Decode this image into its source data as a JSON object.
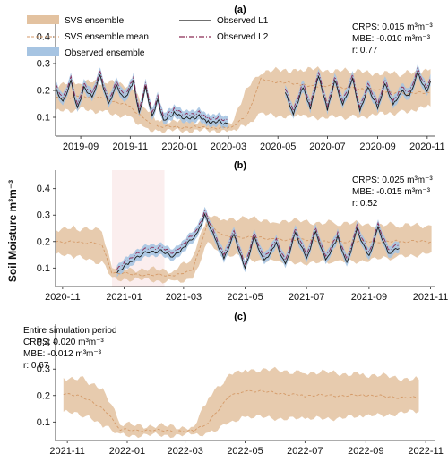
{
  "figure": {
    "ylabel": "Soil Moisture m³m⁻³"
  },
  "colors": {
    "svs_ensemble": "#e3c2a0",
    "svs_mean": "#d49a68",
    "obs_ensemble": "#a6c4e2",
    "l1": "#1a1a1a",
    "l2": "#8a2a55",
    "shade": "#fbeeee"
  },
  "legend": {
    "svs_ensemble": "SVS ensemble",
    "svs_mean": "SVS ensemble mean",
    "obs_ensemble": "Observed ensemble",
    "l1": "Observed L1",
    "l2": "Observed L2"
  },
  "chart_data": [
    {
      "panel": "(a)",
      "type": "area",
      "x_range": [
        "2019-08-01",
        "2020-11-10"
      ],
      "ylim": [
        0.03,
        0.47
      ],
      "yticks": [
        "0.1",
        "0.2",
        "0.3",
        "0.4"
      ],
      "xticks": [
        "2019-09",
        "2019-11",
        "2020-01",
        "2020-03",
        "2020-05",
        "2020-07",
        "2020-09",
        "2020-11"
      ],
      "stats": {
        "crps": "CRPS: 0.015 m³m⁻³",
        "mbe": "MBE: -0.010 m³m⁻³",
        "r": "r:  0.77"
      },
      "svs_mean": [
        [
          "2019-08-01",
          0.17
        ],
        [
          "2019-09-01",
          0.18
        ],
        [
          "2019-10-01",
          0.17
        ],
        [
          "2019-11-01",
          0.14
        ],
        [
          "2019-11-20",
          0.09
        ],
        [
          "2019-12-05",
          0.065
        ],
        [
          "2020-03-05",
          0.06
        ],
        [
          "2020-03-25",
          0.11
        ],
        [
          "2020-04-10",
          0.24
        ],
        [
          "2020-06-01",
          0.22
        ],
        [
          "2020-08-01",
          0.21
        ],
        [
          "2020-10-01",
          0.19
        ],
        [
          "2020-11-05",
          0.19
        ]
      ],
      "svs_lo": [
        [
          "2019-08-01",
          0.12
        ],
        [
          "2019-09-01",
          0.13
        ],
        [
          "2019-10-01",
          0.12
        ],
        [
          "2019-11-01",
          0.1
        ],
        [
          "2019-11-20",
          0.06
        ],
        [
          "2019-12-05",
          0.05
        ],
        [
          "2020-03-05",
          0.05
        ],
        [
          "2020-03-25",
          0.07
        ],
        [
          "2020-04-10",
          0.11
        ],
        [
          "2020-06-01",
          0.1
        ],
        [
          "2020-08-01",
          0.1
        ],
        [
          "2020-10-01",
          0.12
        ],
        [
          "2020-11-05",
          0.14
        ]
      ],
      "svs_hi": [
        [
          "2019-08-01",
          0.22
        ],
        [
          "2019-09-01",
          0.23
        ],
        [
          "2019-10-01",
          0.23
        ],
        [
          "2019-11-01",
          0.22
        ],
        [
          "2019-11-20",
          0.13
        ],
        [
          "2019-12-05",
          0.09
        ],
        [
          "2020-03-05",
          0.08
        ],
        [
          "2020-03-25",
          0.22
        ],
        [
          "2020-04-10",
          0.27
        ],
        [
          "2020-06-01",
          0.28
        ],
        [
          "2020-08-01",
          0.27
        ],
        [
          "2020-10-01",
          0.26
        ],
        [
          "2020-11-05",
          0.28
        ]
      ],
      "obs_mean": [
        [
          "2019-08-01",
          0.21
        ],
        [
          "2019-08-10",
          0.16
        ],
        [
          "2019-08-20",
          0.24
        ],
        [
          "2019-08-28",
          0.14
        ],
        [
          "2019-09-05",
          0.22
        ],
        [
          "2019-09-15",
          0.18
        ],
        [
          "2019-09-25",
          0.26
        ],
        [
          "2019-10-05",
          0.15
        ],
        [
          "2019-10-15",
          0.22
        ],
        [
          "2019-10-25",
          0.17
        ],
        [
          "2019-11-05",
          0.24
        ],
        [
          "2019-11-12",
          0.12
        ],
        [
          "2019-11-20",
          0.22
        ],
        [
          "2019-11-28",
          0.11
        ],
        [
          "2019-12-05",
          0.17
        ],
        [
          "2019-12-12",
          0.09
        ],
        [
          "2019-12-25",
          0.12
        ],
        [
          "2020-01-10",
          0.1
        ],
        [
          "2020-01-25",
          0.11
        ],
        [
          "2020-02-05",
          0.09
        ],
        [
          "2020-02-20",
          0.09
        ],
        [
          "2020-03-01",
          0.08
        ]
      ],
      "obs_mean_2": [
        [
          "2020-05-10",
          0.2
        ],
        [
          "2020-05-20",
          0.12
        ],
        [
          "2020-06-01",
          0.22
        ],
        [
          "2020-06-10",
          0.14
        ],
        [
          "2020-06-20",
          0.26
        ],
        [
          "2020-07-01",
          0.13
        ],
        [
          "2020-07-10",
          0.24
        ],
        [
          "2020-07-20",
          0.15
        ],
        [
          "2020-08-01",
          0.25
        ],
        [
          "2020-08-10",
          0.13
        ],
        [
          "2020-08-20",
          0.22
        ],
        [
          "2020-09-01",
          0.14
        ],
        [
          "2020-09-10",
          0.23
        ],
        [
          "2020-09-20",
          0.15
        ],
        [
          "2020-10-01",
          0.2
        ],
        [
          "2020-10-10",
          0.18
        ],
        [
          "2020-10-20",
          0.27
        ],
        [
          "2020-11-01",
          0.2
        ],
        [
          "2020-11-05",
          0.24
        ]
      ]
    },
    {
      "panel": "(b)",
      "type": "area",
      "x_range": [
        "2020-10-25",
        "2021-11-05"
      ],
      "ylim": [
        0.03,
        0.47
      ],
      "yticks": [
        "0.1",
        "0.2",
        "0.3",
        "0.4"
      ],
      "xticks": [
        "2020-11",
        "2021-01",
        "2021-03",
        "2021-05",
        "2021-07",
        "2021-09",
        "2021-11"
      ],
      "shade": [
        "2020-12-20",
        "2021-02-10"
      ],
      "stats": {
        "crps": "CRPS: 0.025 m³m⁻³",
        "mbe": "MBE: -0.015 m³m⁻³",
        "r": "r:  0.52"
      },
      "svs_mean": [
        [
          "2020-10-25",
          0.2
        ],
        [
          "2020-11-15",
          0.2
        ],
        [
          "2020-12-10",
          0.19
        ],
        [
          "2020-12-20",
          0.08
        ],
        [
          "2021-02-20",
          0.07
        ],
        [
          "2021-03-10",
          0.09
        ],
        [
          "2021-03-25",
          0.27
        ],
        [
          "2021-04-10",
          0.22
        ],
        [
          "2021-06-01",
          0.21
        ],
        [
          "2021-08-01",
          0.2
        ],
        [
          "2021-10-01",
          0.2
        ],
        [
          "2021-11-02",
          0.2
        ]
      ],
      "svs_lo": [
        [
          "2020-10-25",
          0.15
        ],
        [
          "2020-11-15",
          0.14
        ],
        [
          "2020-12-10",
          0.12
        ],
        [
          "2020-12-20",
          0.06
        ],
        [
          "2021-02-20",
          0.05
        ],
        [
          "2021-03-10",
          0.06
        ],
        [
          "2021-03-25",
          0.2
        ],
        [
          "2021-04-10",
          0.15
        ],
        [
          "2021-06-01",
          0.12
        ],
        [
          "2021-08-01",
          0.12
        ],
        [
          "2021-10-01",
          0.14
        ],
        [
          "2021-11-02",
          0.16
        ]
      ],
      "svs_hi": [
        [
          "2020-10-25",
          0.25
        ],
        [
          "2020-11-15",
          0.25
        ],
        [
          "2020-12-10",
          0.24
        ],
        [
          "2020-12-20",
          0.1
        ],
        [
          "2021-02-20",
          0.09
        ],
        [
          "2021-03-10",
          0.14
        ],
        [
          "2021-03-25",
          0.3
        ],
        [
          "2021-04-10",
          0.29
        ],
        [
          "2021-06-01",
          0.28
        ],
        [
          "2021-08-01",
          0.27
        ],
        [
          "2021-10-01",
          0.26
        ],
        [
          "2021-11-02",
          0.26
        ]
      ],
      "obs_mean": [
        [
          "2020-12-25",
          0.09
        ],
        [
          "2021-01-05",
          0.12
        ],
        [
          "2021-01-20",
          0.16
        ],
        [
          "2021-02-05",
          0.17
        ],
        [
          "2021-02-20",
          0.15
        ],
        [
          "2021-03-05",
          0.2
        ],
        [
          "2021-03-15",
          0.24
        ],
        [
          "2021-03-22",
          0.31
        ],
        [
          "2021-04-01",
          0.22
        ],
        [
          "2021-04-10",
          0.14
        ],
        [
          "2021-04-20",
          0.23
        ],
        [
          "2021-05-01",
          0.1
        ],
        [
          "2021-05-10",
          0.22
        ],
        [
          "2021-05-20",
          0.13
        ],
        [
          "2021-06-01",
          0.2
        ],
        [
          "2021-06-10",
          0.12
        ],
        [
          "2021-06-20",
          0.24
        ],
        [
          "2021-07-01",
          0.14
        ],
        [
          "2021-07-10",
          0.24
        ],
        [
          "2021-07-20",
          0.13
        ],
        [
          "2021-08-01",
          0.22
        ],
        [
          "2021-08-10",
          0.12
        ],
        [
          "2021-08-20",
          0.25
        ],
        [
          "2021-09-01",
          0.15
        ],
        [
          "2021-09-10",
          0.26
        ],
        [
          "2021-09-20",
          0.16
        ],
        [
          "2021-10-01",
          0.18
        ]
      ]
    },
    {
      "panel": "(c)",
      "type": "area",
      "x_range": [
        "2021-10-20",
        "2022-11-10"
      ],
      "ylim": [
        0.03,
        0.47
      ],
      "yticks": [
        "0.1",
        "0.2",
        "0.3",
        "0.4"
      ],
      "xticks": [
        "2021-11",
        "2022-01",
        "2022-03",
        "2022-05",
        "2022-07",
        "2022-09",
        "2022-11"
      ],
      "stats": {
        "title": "Entire simulation period",
        "crps": "CRPS: 0.020 m³m⁻³",
        "mbe": "MBE: -0.012 m³m⁻³",
        "r": "r:  0.67"
      },
      "svs_mean": [
        [
          "2021-10-28",
          0.21
        ],
        [
          "2021-11-20",
          0.19
        ],
        [
          "2021-12-10",
          0.14
        ],
        [
          "2021-12-25",
          0.07
        ],
        [
          "2022-03-10",
          0.065
        ],
        [
          "2022-03-25",
          0.1
        ],
        [
          "2022-04-15",
          0.2
        ],
        [
          "2022-05-01",
          0.22
        ],
        [
          "2022-07-01",
          0.2
        ],
        [
          "2022-09-01",
          0.2
        ],
        [
          "2022-10-25",
          0.19
        ]
      ],
      "svs_lo": [
        [
          "2021-10-28",
          0.14
        ],
        [
          "2021-11-20",
          0.12
        ],
        [
          "2021-12-10",
          0.08
        ],
        [
          "2021-12-25",
          0.05
        ],
        [
          "2022-03-10",
          0.05
        ],
        [
          "2022-03-25",
          0.06
        ],
        [
          "2022-04-15",
          0.1
        ],
        [
          "2022-05-01",
          0.12
        ],
        [
          "2022-07-01",
          0.11
        ],
        [
          "2022-09-01",
          0.12
        ],
        [
          "2022-10-25",
          0.14
        ]
      ],
      "svs_hi": [
        [
          "2021-10-28",
          0.27
        ],
        [
          "2021-11-20",
          0.26
        ],
        [
          "2021-12-10",
          0.21
        ],
        [
          "2021-12-25",
          0.09
        ],
        [
          "2022-03-10",
          0.08
        ],
        [
          "2022-03-25",
          0.19
        ],
        [
          "2022-04-15",
          0.28
        ],
        [
          "2022-05-01",
          0.3
        ],
        [
          "2022-07-01",
          0.29
        ],
        [
          "2022-09-01",
          0.28
        ],
        [
          "2022-10-25",
          0.26
        ]
      ]
    }
  ]
}
